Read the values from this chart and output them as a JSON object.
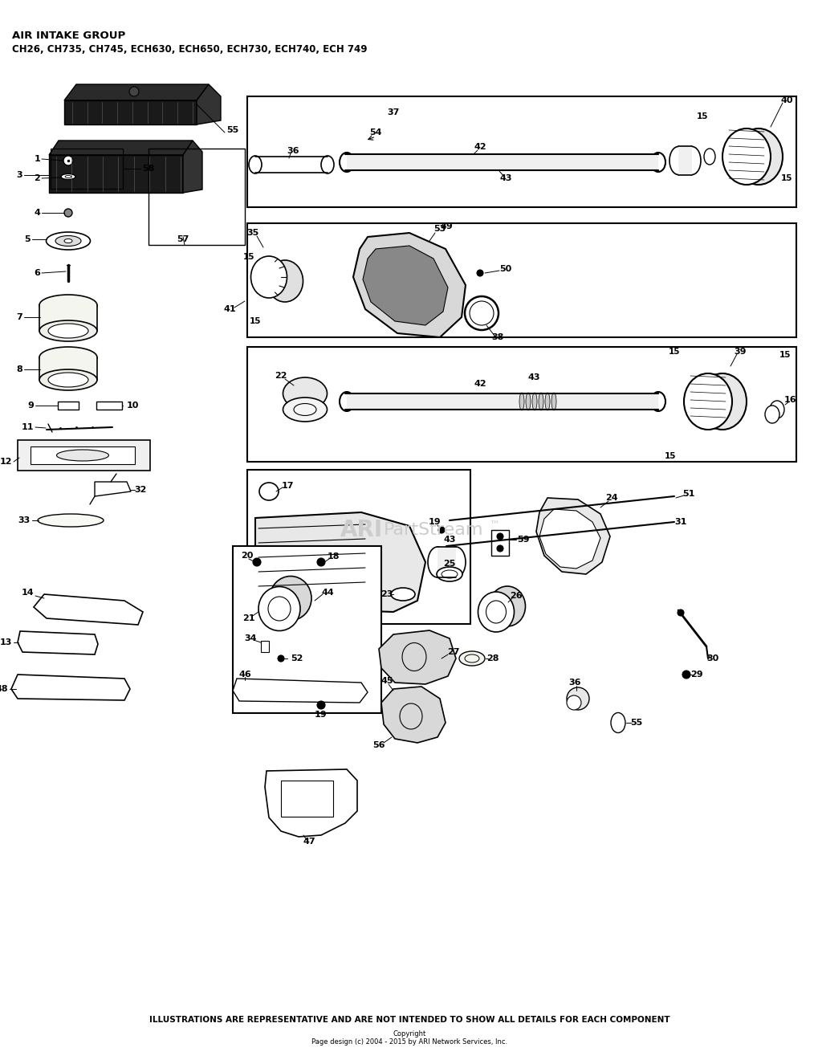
{
  "title_line1": "AIR INTAKE GROUP",
  "title_line2": "CH26, CH735, CH745, ECH630, ECH650, ECH730, ECH740, ECH 749",
  "footer_bold": "ILLUSTRATIONS ARE REPRESENTATIVE AND ARE NOT INTENDED TO SHOW ALL DETAILS FOR EACH COMPONENT",
  "footer_copy1": "Copyright",
  "footer_copy2": "Page design (c) 2004 - 2015 by ARI Network Services, Inc.",
  "bg_color": "#ffffff"
}
